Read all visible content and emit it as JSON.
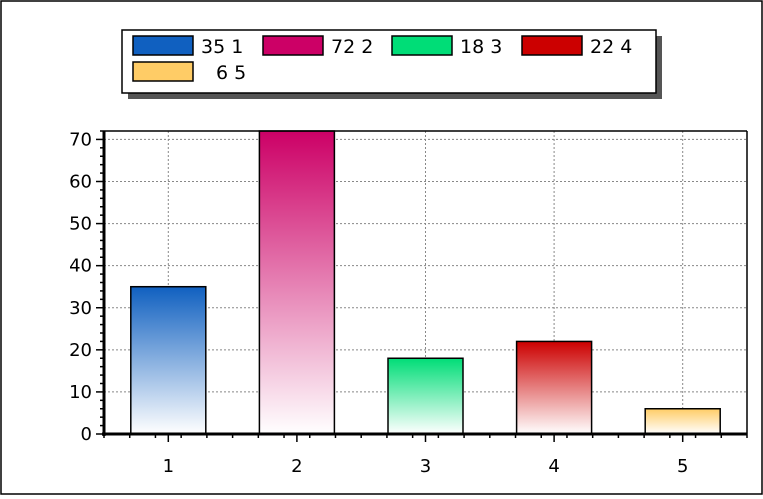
{
  "chart_data": {
    "type": "bar",
    "categories": [
      "1",
      "2",
      "3",
      "4",
      "5"
    ],
    "values": [
      35,
      72,
      18,
      22,
      6
    ],
    "colors": [
      "#1060c0",
      "#cc0066",
      "#00dd77",
      "#cc0000",
      "#ffcc66"
    ],
    "legend": [
      "35 1",
      "72 2",
      "18 3",
      "22 4",
      "6 5"
    ],
    "legend_position": "top",
    "ylim": [
      0,
      72
    ],
    "yticks": [
      0,
      10,
      20,
      30,
      40,
      50,
      60,
      70
    ],
    "grid": true,
    "title": "",
    "xlabel": "",
    "ylabel": ""
  }
}
